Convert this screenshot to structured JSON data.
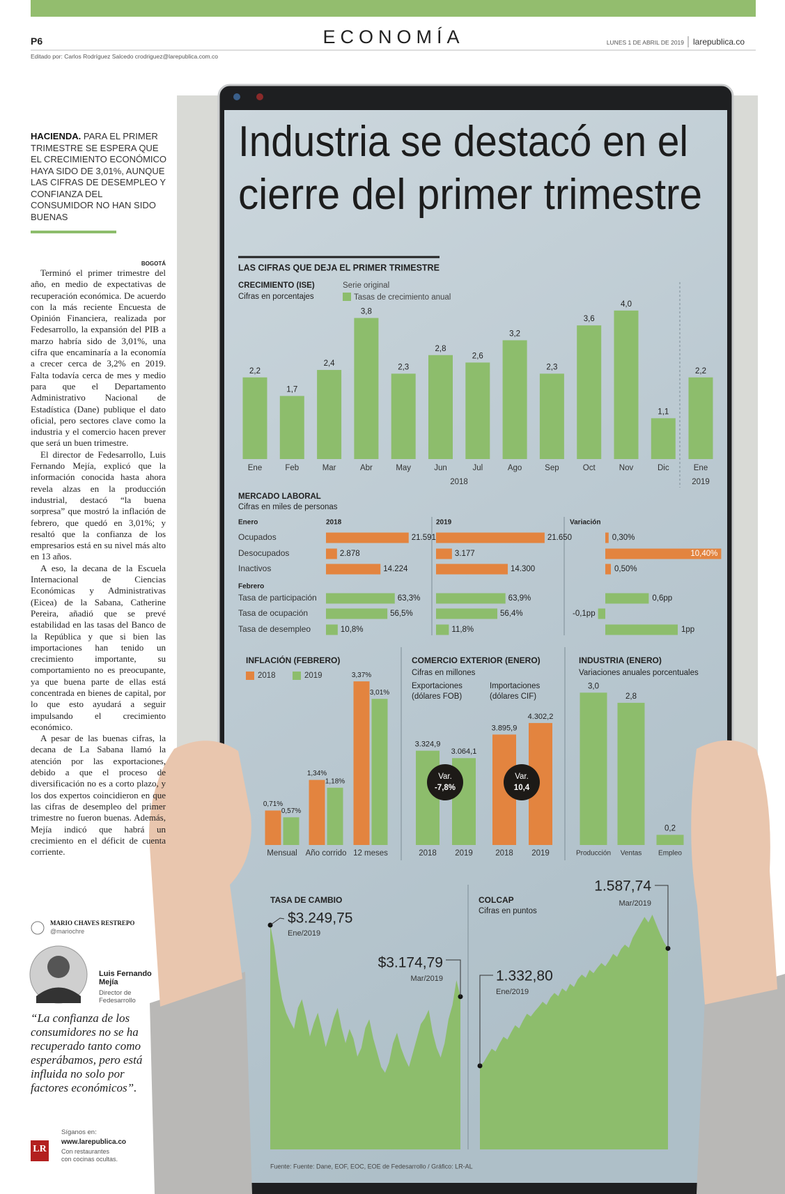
{
  "header": {
    "page": "P6",
    "section": "ECONOMÍA",
    "date": "LUNES 1 DE ABRIL DE 2019",
    "site": "larepublica.co",
    "editor": "Editado por: Carlos Rodríguez Salcedo crodriguez@larepublica.com.co"
  },
  "article": {
    "kicker": "HACIENDA.",
    "summary": "PARA EL PRIMER TRIMESTRE SE ESPERA QUE EL CRECIMIENTO ECONÓMICO HAYA SIDO DE 3,01%, AUNQUE LAS CIFRAS DE DESEMPLEO Y CONFIANZA DEL CONSUMIDOR NO HAN SIDO BUENAS",
    "dateline": "BOGOTÁ",
    "paragraphs": [
      "Terminó el primer trimestre del año, en medio de expectativas de recuperación económica. De acuerdo con la más reciente Encuesta de Opinión Financiera, realizada por Fedesarrollo, la expansión del PIB a marzo habría sido de 3,01%, una cifra que encaminaría a la economía a crecer cerca de 3,2% en 2019. Falta todavía cerca de mes y medio para que el Departamento Administrativo Nacional de Estadística (Dane) publique el dato oficial, pero sectores clave como la industria y el comercio hacen prever que será un buen trimestre.",
      "El director de Fedesarrollo, Luis Fernando Mejía, explicó que la información conocida hasta ahora revela alzas en la producción industrial, destacó “la buena sorpresa” que mostró la inflación de febrero, que quedó en 3,01%; y resaltó que la confianza de los empresarios está en su nivel más alto en 13 años.",
      "A eso, la decana de la Escuela Internacional de Ciencias Económicas y Administrativas (Eicea) de la Sabana, Catherine Pereira, añadió que se prevé estabilidad en las tasas del Banco de la República y que si bien las importaciones han tenido un crecimiento importante, su comportamiento no es preocupante, ya que buena parte de ellas está concentrada en bienes de capital, por lo que esto ayudará a seguir impulsando el crecimiento económico.",
      "A pesar de las buenas cifras, la decana de La Sabana llamó la atención por las exportaciones, debido a que el proceso de diversificación no es a corto plazo, y los dos expertos coincidieron en que las cifras de desempleo del primer trimestre no fueron buenas. Además, Mejía indicó que habrá un crecimiento en el déficit de cuenta corriente."
    ],
    "author": "MARIO CHAVES RESTREPO",
    "author_handle": "@mariochre"
  },
  "quote": {
    "name": "Luis Fernando Mejía",
    "role": "Director de Fedesarrollo",
    "text": "“La confianza de los consumidores no se ha recuperado tanto como esperábamos, pero está influida no solo por factores económicos”."
  },
  "footer": {
    "logo": "LR",
    "follow": "Síganos en:",
    "url": "www.larepublica.co",
    "note": "Con restaurantes con cocinas ocultas."
  },
  "infographic": {
    "title_lines": [
      "Industria se destacó en el",
      "cierre del primer trimestre"
    ],
    "section_title": "LAS CIFRAS QUE DEJA EL PRIMER TRIMESTRE",
    "growth": {
      "title": "CRECIMIENTO (ISE)",
      "subtitle": "Cifras en porcentajes",
      "legend_title": "Serie original",
      "legend": "Tasas de crecimiento anual",
      "color": "#8dbd6c",
      "categories": [
        "Ene",
        "Feb",
        "Mar",
        "Abr",
        "May",
        "Jun",
        "Jul",
        "Ago",
        "Sep",
        "Oct",
        "Nov",
        "Dic",
        "Ene"
      ],
      "years": [
        "2018",
        "2019"
      ],
      "values": [
        2.2,
        1.7,
        2.4,
        3.8,
        2.3,
        2.8,
        2.6,
        3.2,
        2.3,
        3.6,
        4.0,
        1.1,
        2.2
      ],
      "value_labels": [
        "2,2",
        "1,7",
        "2,4",
        "3,8",
        "2,3",
        "2,8",
        "2,6",
        "3,2",
        "2,3",
        "3,6",
        "4,0",
        "1,1",
        "2,2"
      ]
    },
    "labor": {
      "title": "MERCADO LABORAL",
      "subtitle": "Cifras en miles de personas",
      "columns": [
        "2018",
        "2019",
        "Variación"
      ],
      "groups": [
        {
          "name": "Enero",
          "color": "#e3843f",
          "rows": [
            {
              "label": "Ocupados",
              "y2018": 21591,
              "y2018_label": "21.591",
              "y2019": 21650,
              "y2019_label": "21.650",
              "change": 0.3,
              "change_label": "0,30%"
            },
            {
              "label": "Desocupados",
              "y2018": 2878,
              "y2018_label": "2.878",
              "y2019": 3177,
              "y2019_label": "3.177",
              "change": 10.4,
              "change_label": "10,40%"
            },
            {
              "label": "Inactivos",
              "y2018": 14224,
              "y2018_label": "14.224",
              "y2019": 14300,
              "y2019_label": "14.300",
              "change": 0.5,
              "change_label": "0,50%"
            }
          ]
        },
        {
          "name": "Febrero",
          "color": "#8dbd6c",
          "rows": [
            {
              "label": "Tasa de participación",
              "y2018": 63.3,
              "y2018_label": "63,3%",
              "y2019": 63.9,
              "y2019_label": "63,9%",
              "change": 0.6,
              "change_label": "0,6pp"
            },
            {
              "label": "Tasa de ocupación",
              "y2018": 56.5,
              "y2018_label": "56,5%",
              "y2019": 56.4,
              "y2019_label": "56,4%",
              "change": -0.1,
              "change_label": "-0,1pp"
            },
            {
              "label": "Tasa de desempleo",
              "y2018": 10.8,
              "y2018_label": "10,8%",
              "y2019": 11.8,
              "y2019_label": "11,8%",
              "change": 1,
              "change_label": "1pp"
            }
          ]
        }
      ]
    },
    "inflation": {
      "title": "INFLACIÓN (FEBRERO)",
      "categories": [
        "Mensual",
        "Año corrido",
        "12 meses"
      ],
      "series": [
        {
          "name": "2018",
          "color": "#e3843f",
          "values": [
            0.71,
            1.34,
            3.37
          ],
          "value_labels": [
            "0,71%",
            "1,34%",
            "3,37%"
          ]
        },
        {
          "name": "2019",
          "color": "#8dbd6c",
          "values": [
            0.57,
            1.18,
            3.01
          ],
          "value_labels": [
            "0,57%",
            "1,18%",
            "3,01%"
          ]
        }
      ]
    },
    "trade": {
      "title": "COMERCIO EXTERIOR (ENERO)",
      "subtitle": "Cifras en millones",
      "groups": [
        {
          "name": "Exportaciones",
          "unit": "(dólares FOB)",
          "color": "#8dbd6c",
          "categories": [
            "2018",
            "2019"
          ],
          "values": [
            3324.9,
            3064.1
          ],
          "value_labels": [
            "3.324,9",
            "3.064,1"
          ],
          "change_title": "Var.",
          "change": -7.8,
          "change_label": "-7,8%"
        },
        {
          "name": "Importaciones",
          "unit": "(dólares CIF)",
          "color": "#e3843f",
          "categories": [
            "2018",
            "2019"
          ],
          "values": [
            3895.9,
            4302.2
          ],
          "value_labels": [
            "3.895,9",
            "4.302,2"
          ],
          "change_title": "Var.",
          "change": 10.4,
          "change_label": "10,4"
        }
      ]
    },
    "industry": {
      "title": "INDUSTRIA (ENERO)",
      "subtitle": "Variaciones anuales porcentuales",
      "color": "#8dbd6c",
      "categories": [
        "Producción",
        "Ventas",
        "Empleo"
      ],
      "values": [
        3.0,
        2.8,
        0.2
      ],
      "value_labels": [
        "3,0",
        "2,8",
        "0,2"
      ]
    },
    "exchange": {
      "title": "TASA DE CAMBIO",
      "color": "#8dbd6c",
      "start_label": "$3.249,75",
      "start_date": "Ene/2019",
      "end_label": "$3.174,79",
      "end_date": "Mar/2019",
      "values": [
        3249.75,
        3228,
        3196,
        3172,
        3158,
        3149,
        3141,
        3163,
        3172,
        3154,
        3133,
        3147,
        3158,
        3141,
        3122,
        3136,
        3152,
        3163,
        3142,
        3126,
        3141,
        3131,
        3112,
        3121,
        3142,
        3151,
        3131,
        3116,
        3101,
        3095,
        3106,
        3126,
        3137,
        3121,
        3110,
        3101,
        3116,
        3131,
        3146,
        3152,
        3161,
        3137,
        3121,
        3111,
        3126,
        3151,
        3166,
        3192,
        3174.79
      ]
    },
    "colcap": {
      "title": "COLCAP",
      "subtitle": "Cifras en puntos",
      "color": "#8dbd6c",
      "start_label": "1.332,80",
      "start_date": "Ene/2019",
      "end_label": "1.587,74",
      "end_date": "Mar/2019",
      "values": [
        1332.8,
        1341,
        1356,
        1370,
        1364,
        1381,
        1396,
        1390,
        1406,
        1421,
        1414,
        1431,
        1446,
        1440,
        1451,
        1461,
        1472,
        1465,
        1481,
        1491,
        1484,
        1501,
        1494,
        1511,
        1504,
        1521,
        1531,
        1524,
        1541,
        1534,
        1546,
        1556,
        1549,
        1561,
        1576,
        1569,
        1586,
        1596,
        1589,
        1611,
        1626,
        1641,
        1656,
        1644,
        1661,
        1640,
        1619,
        1601,
        1587.74
      ]
    },
    "source": "Fuente: Fuente: Dane, EOF, EOC, EOE de Fedesarrollo / Gráfico: LR-AL"
  }
}
